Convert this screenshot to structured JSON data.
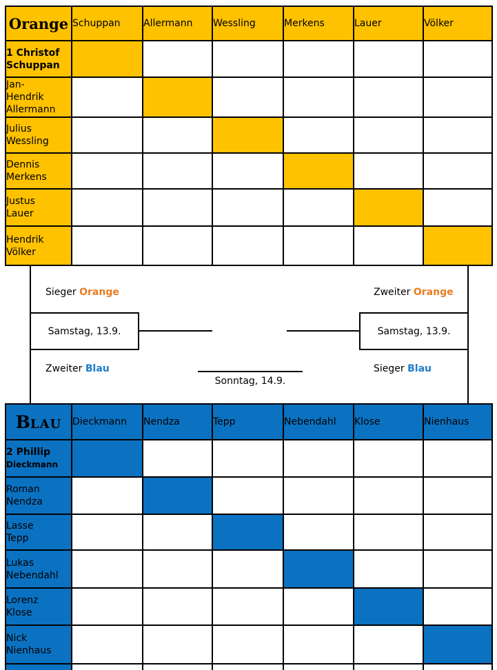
{
  "groups": [
    {
      "id": "orange",
      "title": "Orange",
      "fill": "#FEC200",
      "accent_text": "#E87D22",
      "col_headers": [
        "Schuppan",
        "Allermann",
        "Wessling",
        "Merkens",
        "Lauer",
        "Völker"
      ],
      "rows": [
        {
          "name": "1 Christof Schuppan",
          "label_lines": [
            "1 Christof",
            "Schuppan"
          ],
          "bold": true
        },
        {
          "name": "Jan-Hendrik Allermann",
          "label_lines": [
            "Jan-",
            "Hendrik",
            "Allermann"
          ]
        },
        {
          "name": "Julius Wessling",
          "label_lines": [
            "Julius",
            "Wessling"
          ]
        },
        {
          "name": "Dennis Merkens",
          "label_lines": [
            "Dennis",
            "Merkens"
          ]
        },
        {
          "name": "Justus Lauer",
          "label_lines": [
            "Justus",
            "Lauer"
          ]
        },
        {
          "name": "Hendrik Völker",
          "label_lines": [
            "Hendrik",
            "Völker"
          ]
        }
      ]
    },
    {
      "id": "blau",
      "title": "Blau",
      "fill": "#0B72C1",
      "accent_text": "#1E7CC8",
      "col_headers": [
        "Dieckmann",
        "Nendza",
        "Tepp",
        "Nebendahl",
        "Klose",
        "Nienhaus"
      ],
      "rows": [
        {
          "name": "2 Phillip Dieckmann",
          "label_lines": [
            "2 Phillip",
            "Dieckmann"
          ],
          "bold": true,
          "second_line_small": true
        },
        {
          "name": "Roman Nendza",
          "label_lines": [
            "Roman",
            "Nendza"
          ]
        },
        {
          "name": "Lasse Tepp",
          "label_lines": [
            "Lasse",
            "Tepp"
          ]
        },
        {
          "name": "Lukas Nebendahl",
          "label_lines": [
            "Lukas",
            "Nebendahl"
          ]
        },
        {
          "name": "Lorenz Klose",
          "label_lines": [
            "Lorenz",
            "Klose"
          ]
        },
        {
          "name": "Nick Nienhaus",
          "label_lines": [
            "Nick",
            "Nienhaus"
          ]
        }
      ],
      "partial_row_visible": true
    }
  ],
  "bracket": {
    "semifinals": [
      {
        "side": "left",
        "top_word": "Sieger",
        "top_group": "Orange",
        "date": "Samstag, 13.9.",
        "bottom_word": "Zweiter",
        "bottom_group": "Blau"
      },
      {
        "side": "right",
        "top_word": "Zweiter",
        "top_group": "Orange",
        "date": "Samstag, 13.9.",
        "bottom_word": "Sieger",
        "bottom_group": "Blau"
      }
    ],
    "final": {
      "date": "Sonntag, 14.9."
    }
  }
}
